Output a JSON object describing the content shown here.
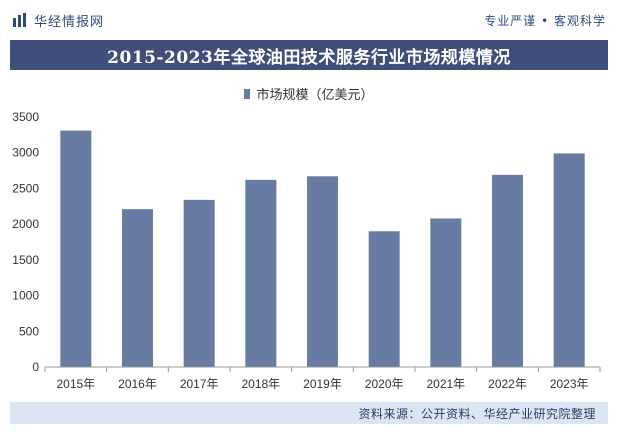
{
  "header": {
    "brand_name": "华经情报网",
    "slogan": "专业严谨 • 客观科学"
  },
  "footer": {
    "source": "资料来源：公开资料、华经产业研究院整理"
  },
  "colors": {
    "bar": "#687ba2",
    "title_bg": "#3f4f7a",
    "source_bg": "#dbe6f4"
  },
  "chart_data": {
    "type": "bar",
    "title": "2015-2023年全球油田技术服务行业市场规模情况",
    "categories": [
      "2015年",
      "2016年",
      "2017年",
      "2018年",
      "2019年",
      "2020年",
      "2021年",
      "2022年",
      "2023年"
    ],
    "series": [
      {
        "name": "市场规模（亿美元）",
        "values": [
          3310,
          2210,
          2340,
          2620,
          2670,
          1900,
          2080,
          2690,
          2990
        ]
      }
    ],
    "ylim": [
      0,
      3500
    ],
    "yticks": [
      0,
      500,
      1000,
      1500,
      2000,
      2500,
      3000,
      3500
    ],
    "grid": false,
    "legend": "top-center"
  }
}
